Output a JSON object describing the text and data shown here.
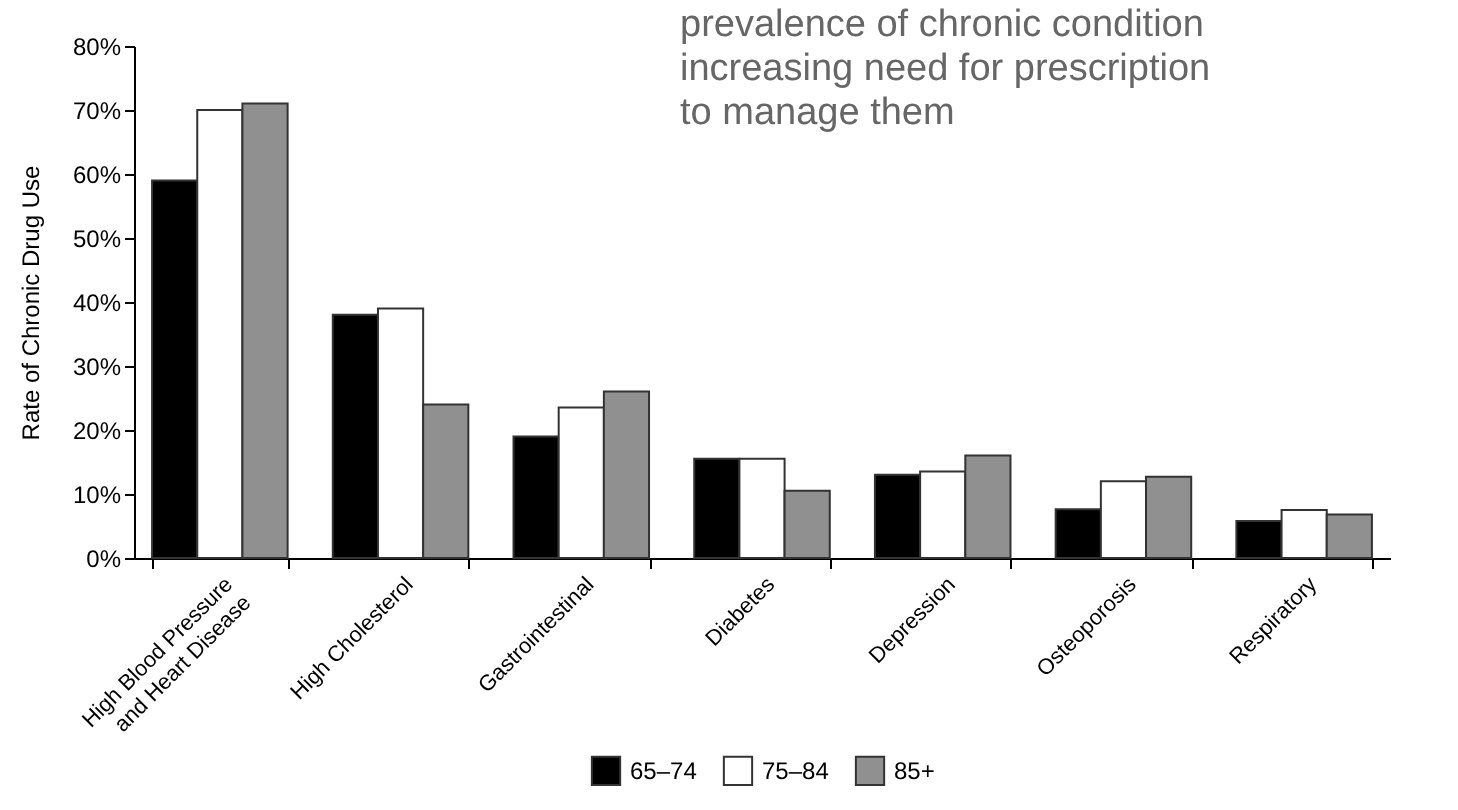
{
  "chart_data": {
    "type": "bar",
    "ylabel": "Rate of Chronic Drug Use",
    "annotations": [
      "prevalence of chronic condition",
      "increasing need for prescription",
      "to manage them"
    ],
    "categories": [
      "High Blood Pressure\nand Heart Disease",
      "High Cholesterol",
      "Gastrointestinal",
      "Diabetes",
      "Depression",
      "Osteoporosis",
      "Respiratory"
    ],
    "series": [
      {
        "name": "65–74",
        "color": "#000000",
        "values": [
          59,
          38,
          19,
          15.5,
          13,
          7.6,
          5.8
        ]
      },
      {
        "name": "75–84",
        "color": "#ffffff",
        "values": [
          70,
          39,
          23.5,
          15.5,
          13.5,
          12,
          7.5
        ]
      },
      {
        "name": "85+",
        "color": "#909090",
        "values": [
          71,
          24,
          26,
          10.5,
          16,
          12.7,
          6.8
        ]
      }
    ],
    "ylim": [
      0,
      80
    ],
    "yticks": [
      {
        "value": 0,
        "label": "0%"
      },
      {
        "value": 10,
        "label": "10%"
      },
      {
        "value": 20,
        "label": "20%"
      },
      {
        "value": 30,
        "label": "30%"
      },
      {
        "value": 40,
        "label": "40%"
      },
      {
        "value": 50,
        "label": "50%"
      },
      {
        "value": 60,
        "label": "60%"
      },
      {
        "value": 70,
        "label": "70%"
      },
      {
        "value": 80,
        "label": "80%"
      }
    ],
    "grid": false,
    "legend": "bottom"
  }
}
